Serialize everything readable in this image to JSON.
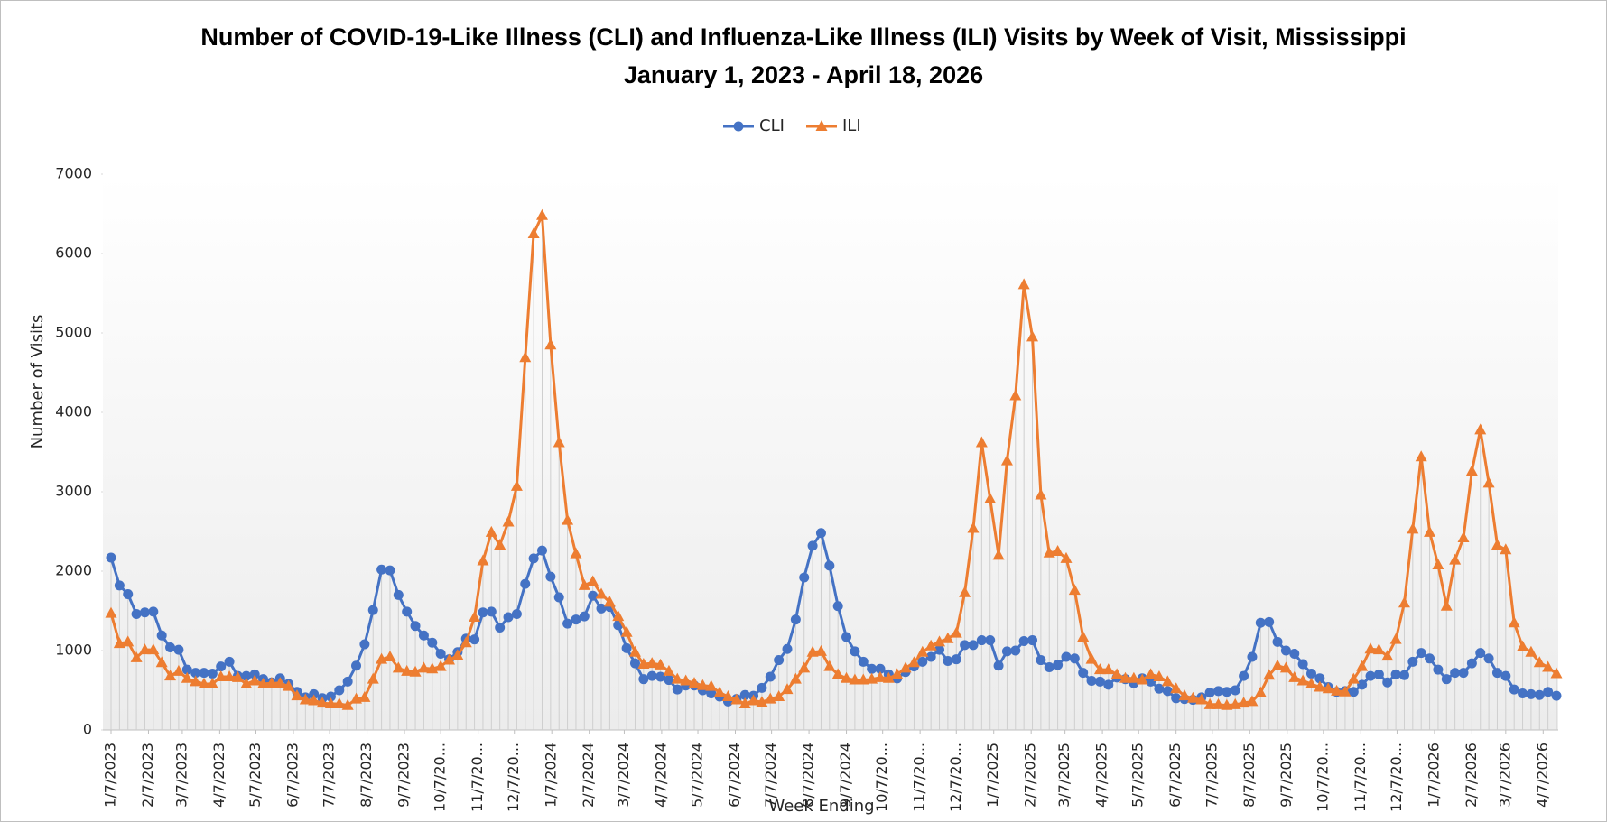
{
  "chart_data": {
    "type": "line",
    "title": "Number of COVID-19-Like Illness (CLI) and Influenza-Like Illness (ILI) Visits by Week of Visit, Mississippi January 1, 2023 - April 18, 2026",
    "xlabel": "Week Ending",
    "ylabel": "Number of Visits",
    "legend": "top",
    "grid": false,
    "ylim": [
      0,
      7000
    ],
    "yticks": [
      0,
      1000,
      2000,
      3000,
      4000,
      5000,
      6000,
      7000
    ],
    "xlim": [
      "2023-01-07",
      "2026-04-18"
    ],
    "xticks": [
      {
        "value": "2023-01-07",
        "label": "1/7/2023"
      },
      {
        "value": "2023-02-07",
        "label": "2/7/2023"
      },
      {
        "value": "2023-03-07",
        "label": "3/7/2023"
      },
      {
        "value": "2023-04-07",
        "label": "4/7/2023"
      },
      {
        "value": "2023-05-07",
        "label": "5/7/2023"
      },
      {
        "value": "2023-06-07",
        "label": "6/7/2023"
      },
      {
        "value": "2023-07-07",
        "label": "7/7/2023"
      },
      {
        "value": "2023-08-07",
        "label": "8/7/2023"
      },
      {
        "value": "2023-09-07",
        "label": "9/7/2023"
      },
      {
        "value": "2023-10-07",
        "label": "10/7/20..."
      },
      {
        "value": "2023-11-07",
        "label": "11/7/20..."
      },
      {
        "value": "2023-12-07",
        "label": "12/7/20..."
      },
      {
        "value": "2024-01-07",
        "label": "1/7/2024"
      },
      {
        "value": "2024-02-07",
        "label": "2/7/2024"
      },
      {
        "value": "2024-03-07",
        "label": "3/7/2024"
      },
      {
        "value": "2024-04-07",
        "label": "4/7/2024"
      },
      {
        "value": "2024-05-07",
        "label": "5/7/2024"
      },
      {
        "value": "2024-06-07",
        "label": "6/7/2024"
      },
      {
        "value": "2024-07-07",
        "label": "7/7/2024"
      },
      {
        "value": "2024-08-07",
        "label": "8/7/2024"
      },
      {
        "value": "2024-09-07",
        "label": "9/7/2024"
      },
      {
        "value": "2024-10-07",
        "label": "10/7/20..."
      },
      {
        "value": "2024-11-07",
        "label": "11/7/20..."
      },
      {
        "value": "2024-12-07",
        "label": "12/7/20..."
      },
      {
        "value": "2025-01-07",
        "label": "1/7/2025"
      },
      {
        "value": "2025-02-07",
        "label": "2/7/2025"
      },
      {
        "value": "2025-03-07",
        "label": "3/7/2025"
      },
      {
        "value": "2025-04-07",
        "label": "4/7/2025"
      },
      {
        "value": "2025-05-07",
        "label": "5/7/2025"
      },
      {
        "value": "2025-06-07",
        "label": "6/7/2025"
      },
      {
        "value": "2025-07-07",
        "label": "7/7/2025"
      },
      {
        "value": "2025-08-07",
        "label": "8/7/2025"
      },
      {
        "value": "2025-09-07",
        "label": "9/7/2025"
      },
      {
        "value": "2025-10-07",
        "label": "10/7/20..."
      },
      {
        "value": "2025-11-07",
        "label": "11/7/20..."
      },
      {
        "value": "2025-12-07",
        "label": "12/7/20..."
      },
      {
        "value": "2026-01-07",
        "label": "1/7/2026"
      },
      {
        "value": "2026-02-07",
        "label": "2/7/2026"
      },
      {
        "value": "2026-03-07",
        "label": "3/7/2026"
      },
      {
        "value": "2026-04-07",
        "label": "4/7/2026"
      }
    ],
    "x": [
      "2023-01-07",
      "2023-01-14",
      "2023-01-21",
      "2023-01-28",
      "2023-02-04",
      "2023-02-11",
      "2023-02-18",
      "2023-02-25",
      "2023-03-04",
      "2023-03-11",
      "2023-03-18",
      "2023-03-25",
      "2023-04-01",
      "2023-04-08",
      "2023-04-15",
      "2023-04-22",
      "2023-04-29",
      "2023-05-06",
      "2023-05-13",
      "2023-05-20",
      "2023-05-27",
      "2023-06-03",
      "2023-06-10",
      "2023-06-17",
      "2023-06-24",
      "2023-07-01",
      "2023-07-08",
      "2023-07-15",
      "2023-07-22",
      "2023-07-29",
      "2023-08-05",
      "2023-08-12",
      "2023-08-19",
      "2023-08-26",
      "2023-09-02",
      "2023-09-09",
      "2023-09-16",
      "2023-09-23",
      "2023-09-30",
      "2023-10-07",
      "2023-10-14",
      "2023-10-21",
      "2023-10-28",
      "2023-11-04",
      "2023-11-11",
      "2023-11-18",
      "2023-11-25",
      "2023-12-02",
      "2023-12-09",
      "2023-12-16",
      "2023-12-23",
      "2023-12-30",
      "2024-01-06",
      "2024-01-13",
      "2024-01-20",
      "2024-01-27",
      "2024-02-03",
      "2024-02-10",
      "2024-02-17",
      "2024-02-24",
      "2024-03-02",
      "2024-03-09",
      "2024-03-16",
      "2024-03-23",
      "2024-03-30",
      "2024-04-06",
      "2024-04-13",
      "2024-04-20",
      "2024-04-27",
      "2024-05-04",
      "2024-05-11",
      "2024-05-18",
      "2024-05-25",
      "2024-06-01",
      "2024-06-08",
      "2024-06-15",
      "2024-06-22",
      "2024-06-29",
      "2024-07-06",
      "2024-07-13",
      "2024-07-20",
      "2024-07-27",
      "2024-08-03",
      "2024-08-10",
      "2024-08-17",
      "2024-08-24",
      "2024-08-31",
      "2024-09-07",
      "2024-09-14",
      "2024-09-21",
      "2024-09-28",
      "2024-10-05",
      "2024-10-12",
      "2024-10-19",
      "2024-10-26",
      "2024-11-02",
      "2024-11-09",
      "2024-11-16",
      "2024-11-23",
      "2024-11-30",
      "2024-12-07",
      "2024-12-14",
      "2024-12-21",
      "2024-12-28",
      "2025-01-04",
      "2025-01-11",
      "2025-01-18",
      "2025-01-25",
      "2025-02-01",
      "2025-02-08",
      "2025-02-15",
      "2025-02-22",
      "2025-03-01",
      "2025-03-08",
      "2025-03-15",
      "2025-03-22",
      "2025-03-29",
      "2025-04-05",
      "2025-04-12",
      "2025-04-19",
      "2025-04-26",
      "2025-05-03",
      "2025-05-10",
      "2025-05-17",
      "2025-05-24",
      "2025-05-31",
      "2025-06-07",
      "2025-06-14",
      "2025-06-21",
      "2025-06-28",
      "2025-07-05",
      "2025-07-12",
      "2025-07-19",
      "2025-07-26",
      "2025-08-02",
      "2025-08-09",
      "2025-08-16",
      "2025-08-23",
      "2025-08-30",
      "2025-09-06",
      "2025-09-13",
      "2025-09-20",
      "2025-09-27",
      "2025-10-04",
      "2025-10-11",
      "2025-10-18",
      "2025-10-25",
      "2025-11-01",
      "2025-11-08",
      "2025-11-15",
      "2025-11-22",
      "2025-11-29",
      "2025-12-06",
      "2025-12-13",
      "2025-12-20",
      "2025-12-27",
      "2026-01-03",
      "2026-01-10",
      "2026-01-17",
      "2026-01-24",
      "2026-01-31",
      "2026-02-07",
      "2026-02-14",
      "2026-02-21",
      "2026-02-28",
      "2026-03-07",
      "2026-03-14",
      "2026-03-21",
      "2026-03-28",
      "2026-04-04",
      "2026-04-11",
      "2026-04-18"
    ],
    "series": [
      {
        "name": "CLI",
        "color": "#4472c4",
        "marker": "circle",
        "values": [
          2170,
          1820,
          1710,
          1460,
          1480,
          1490,
          1190,
          1040,
          1010,
          760,
          720,
          720,
          710,
          800,
          860,
          680,
          680,
          700,
          640,
          600,
          650,
          580,
          480,
          410,
          450,
          400,
          420,
          500,
          610,
          810,
          1080,
          1510,
          2020,
          2010,
          1700,
          1490,
          1310,
          1190,
          1100,
          960,
          890,
          980,
          1150,
          1140,
          1480,
          1490,
          1290,
          1420,
          1460,
          1840,
          2160,
          2260,
          1930,
          1670,
          1340,
          1390,
          1430,
          1690,
          1530,
          1550,
          1320,
          1030,
          840,
          640,
          680,
          670,
          630,
          510,
          560,
          560,
          500,
          460,
          420,
          360,
          390,
          440,
          430,
          530,
          670,
          880,
          1020,
          1390,
          1920,
          2320,
          2480,
          2070,
          1560,
          1170,
          990,
          860,
          770,
          770,
          700,
          650,
          730,
          800,
          860,
          920,
          1010,
          870,
          890,
          1070,
          1070,
          1130,
          1130,
          810,
          990,
          1000,
          1120,
          1130,
          880,
          790,
          820,
          920,
          900,
          720,
          620,
          610,
          570,
          660,
          640,
          590,
          650,
          610,
          520,
          490,
          400,
          390,
          380,
          410,
          470,
          490,
          480,
          500,
          680,
          920,
          1350,
          1360,
          1110,
          1000,
          960,
          830,
          710,
          650,
          540,
          480,
          490,
          480,
          570,
          680,
          700,
          600,
          700,
          690,
          860,
          970,
          900,
          760,
          640,
          720,
          720,
          840,
          970,
          900,
          720,
          680,
          510,
          460,
          450,
          440,
          480,
          430
        ]
      },
      {
        "name": "ILI",
        "color": "#ed7d31",
        "marker": "triangle",
        "values": [
          1470,
          1090,
          1110,
          910,
          1010,
          1010,
          850,
          680,
          740,
          650,
          610,
          580,
          580,
          670,
          670,
          660,
          580,
          620,
          580,
          590,
          590,
          550,
          430,
          380,
          370,
          340,
          330,
          330,
          310,
          390,
          410,
          640,
          890,
          920,
          780,
          740,
          730,
          780,
          770,
          800,
          880,
          940,
          1100,
          1420,
          2130,
          2490,
          2330,
          2620,
          3070,
          4690,
          6250,
          6480,
          4850,
          3620,
          2640,
          2220,
          1820,
          1870,
          1710,
          1610,
          1430,
          1230,
          980,
          830,
          840,
          820,
          740,
          640,
          620,
          590,
          560,
          550,
          470,
          420,
          380,
          330,
          370,
          350,
          390,
          420,
          510,
          640,
          780,
          980,
          990,
          800,
          700,
          650,
          630,
          630,
          640,
          660,
          650,
          700,
          780,
          850,
          980,
          1060,
          1110,
          1150,
          1220,
          1730,
          2540,
          3620,
          2910,
          2200,
          3390,
          4210,
          5610,
          4950,
          2960,
          2230,
          2250,
          2160,
          1760,
          1170,
          890,
          760,
          760,
          700,
          650,
          650,
          630,
          700,
          670,
          610,
          520,
          430,
          400,
          380,
          320,
          320,
          310,
          320,
          340,
          360,
          470,
          690,
          810,
          780,
          660,
          620,
          580,
          540,
          520,
          490,
          480,
          640,
          800,
          1020,
          1010,
          930,
          1140,
          1600,
          2530,
          3440,
          2490,
          2080,
          1560,
          2140,
          2420,
          3260,
          3780,
          3110,
          2330,
          2270,
          1350,
          1050,
          980,
          850,
          790,
          710
        ]
      }
    ]
  }
}
